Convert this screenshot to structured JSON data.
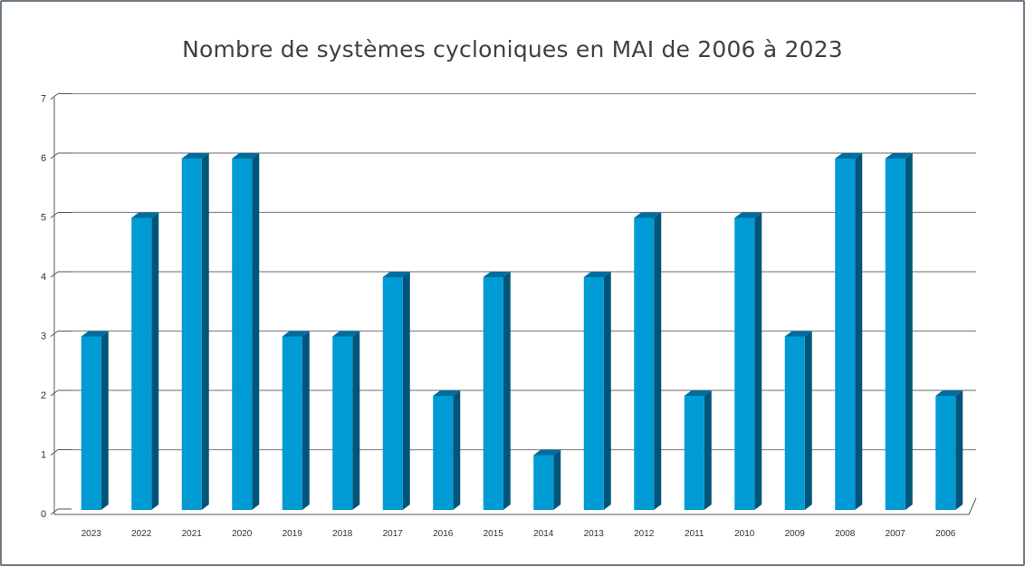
{
  "chart_data": {
    "type": "bar",
    "title": "Nombre de systèmes cycloniques en MAI de 2006 à 2023",
    "xlabel": "",
    "ylabel": "",
    "categories": [
      "2023",
      "2022",
      "2021",
      "2020",
      "2019",
      "2018",
      "2017",
      "2016",
      "2015",
      "2014",
      "2013",
      "2012",
      "2011",
      "2010",
      "2009",
      "2008",
      "2007",
      "2006"
    ],
    "values": [
      3,
      5,
      6,
      6,
      3,
      3,
      4,
      2,
      4,
      1,
      4,
      5,
      2,
      5,
      3,
      6,
      6,
      2
    ],
    "ylim": [
      0,
      7
    ],
    "yticks": [
      "0",
      "1",
      "2",
      "3",
      "4",
      "5",
      "6",
      "7"
    ],
    "grid": true,
    "legend": "none",
    "bar_color": "#009bd5",
    "bar_side_color": "#00557a",
    "bar_top_color": "#006d9c"
  }
}
